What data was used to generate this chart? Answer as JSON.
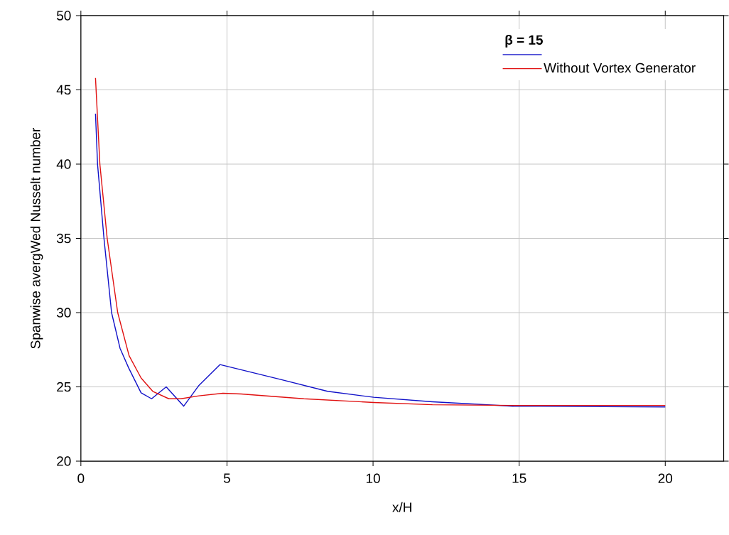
{
  "chart_data": {
    "type": "line",
    "xlabel": "x/H",
    "ylabel": "Spanwise avergWed Nusselt number",
    "legend_title": "**β = 15**",
    "xlim": [
      0,
      22
    ],
    "ylim": [
      20,
      50
    ],
    "xticks": [
      0,
      5,
      10,
      15,
      20
    ],
    "yticks": [
      20,
      25,
      30,
      35,
      40,
      45,
      50
    ],
    "grid": true,
    "legend": "top right",
    "marker": "none",
    "line_style": "solid",
    "series": [
      {
        "color": "#1010c8",
        "x": [
          0.5,
          0.57,
          0.79,
          1.05,
          1.34,
          1.63,
          2.06,
          2.42,
          2.92,
          3.52,
          4.04,
          4.76,
          6.84,
          8.44,
          10.02,
          12.03,
          14.8,
          20.0
        ],
        "values": [
          43.4,
          40.0,
          35.0,
          30.0,
          27.6,
          26.3,
          24.6,
          24.2,
          25.0,
          23.7,
          25.1,
          26.5,
          25.5,
          24.7,
          24.3,
          24.0,
          23.7,
          23.65
        ]
      },
      {
        "name": "Without Vortex Generator",
        "color": "#e01010",
        "x": [
          0.5,
          0.65,
          0.9,
          1.26,
          1.65,
          2.06,
          2.46,
          3.01,
          3.42,
          4.04,
          4.86,
          5.48,
          7.63,
          10.02,
          12.03,
          14.8,
          20.0
        ],
        "values": [
          45.8,
          40.0,
          35.0,
          30.0,
          27.1,
          25.6,
          24.7,
          24.2,
          24.2,
          24.4,
          24.57,
          24.52,
          24.2,
          23.95,
          23.8,
          23.75,
          23.75
        ]
      }
    ]
  }
}
